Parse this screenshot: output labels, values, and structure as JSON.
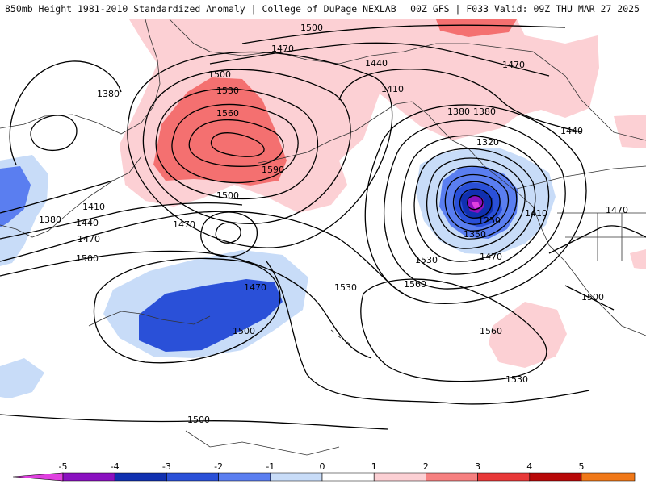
{
  "header": {
    "title_left": "850mb Height 1981-2010 Standardized Anomaly | College of DuPage NEXLAB",
    "title_right": "00Z GFS | F033 Valid: 09Z THU MAR 27 2025"
  },
  "colorbar": {
    "ticks": [
      "-5",
      "-4",
      "-3",
      "-2",
      "-1",
      "0",
      "1",
      "2",
      "3",
      "4",
      "5"
    ],
    "colors": [
      "#e040e0",
      "#8a10c0",
      "#1030b0",
      "#2a50d8",
      "#5a7ef0",
      "#c8dcf8",
      "#ffffff",
      "#fcd0d4",
      "#f68080",
      "#e83838",
      "#b80808",
      "#f07818",
      "#f4b818"
    ]
  },
  "contour_labels": [
    {
      "text": "1500"
    },
    {
      "text": "1470"
    },
    {
      "text": "1440"
    },
    {
      "text": "1470"
    },
    {
      "text": "1410"
    },
    {
      "text": "1380"
    },
    {
      "text": "1500"
    },
    {
      "text": "1530"
    },
    {
      "text": "1560"
    },
    {
      "text": "1590"
    },
    {
      "text": "1500"
    },
    {
      "text": "1470"
    },
    {
      "text": "1380"
    },
    {
      "text": "1320"
    },
    {
      "text": "1250"
    },
    {
      "text": "1350"
    },
    {
      "text": "1410"
    },
    {
      "text": "1440"
    },
    {
      "text": "1470"
    },
    {
      "text": "1470"
    },
    {
      "text": "1530"
    },
    {
      "text": "1560"
    },
    {
      "text": "1530"
    },
    {
      "text": "1560"
    },
    {
      "text": "1530"
    },
    {
      "text": "1500"
    },
    {
      "text": "1470"
    },
    {
      "text": "1500"
    },
    {
      "text": "1410"
    },
    {
      "text": "1380"
    },
    {
      "text": "1440"
    },
    {
      "text": "1470"
    },
    {
      "text": "1500"
    },
    {
      "text": "1380"
    },
    {
      "text": "1500"
    }
  ]
}
